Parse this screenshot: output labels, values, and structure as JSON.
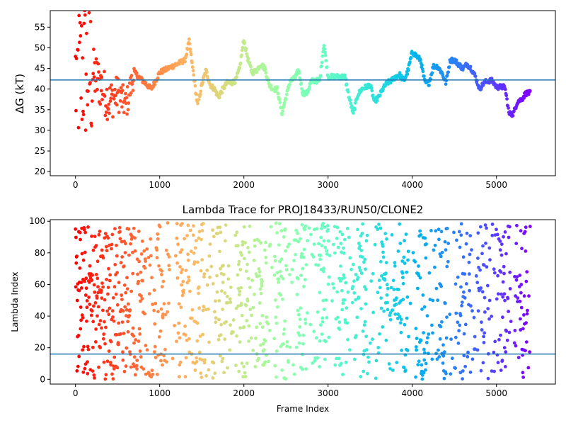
{
  "chart_data": [
    {
      "type": "scatter",
      "title": "",
      "xlabel": "",
      "ylabel": "ΔG (kT)",
      "xlim": [
        -300,
        5700
      ],
      "ylim": [
        19,
        59
      ],
      "xticks": [
        0,
        1000,
        2000,
        3000,
        4000,
        5000
      ],
      "yticks": [
        20,
        25,
        30,
        35,
        40,
        45,
        50,
        55
      ],
      "hline": 42.2,
      "hline_color": "#1f77b4",
      "colormap": "rainbow (reversed over frame index: red at 0, violet at end)",
      "x_max": 5400,
      "series": [
        {
          "x": [
            0,
            100,
            200,
            300,
            400,
            500,
            600,
            700,
            800,
            900,
            1000,
            1100,
            1200,
            1300,
            1350,
            1400,
            1450,
            1500,
            1550,
            1600,
            1650,
            1700,
            1750,
            1800,
            1850,
            1900,
            1950,
            2000,
            2050,
            2100,
            2150,
            2200,
            2250,
            2300,
            2350,
            2400,
            2450,
            2500,
            2550,
            2600,
            2650,
            2700,
            2750,
            2800,
            2850,
            2900,
            2950,
            3000,
            3050,
            3100,
            3150,
            3200,
            3250,
            3300,
            3350,
            3400,
            3450,
            3500,
            3550,
            3600,
            3650,
            3700,
            3750,
            3800,
            3850,
            3900,
            3950,
            4000,
            4050,
            4100,
            4150,
            4200,
            4250,
            4300,
            4350,
            4400,
            4450,
            4500,
            4550,
            4600,
            4650,
            4700,
            4750,
            4800,
            4850,
            4900,
            4950,
            5000,
            5050,
            5100,
            5150,
            5200,
            5250,
            5300,
            5350,
            5400
          ],
          "values": [
            42,
            45,
            44,
            41,
            37,
            39,
            36,
            44,
            42,
            40,
            44,
            45,
            46,
            47,
            51.5,
            44,
            36,
            41,
            44.5,
            41,
            40,
            38,
            40,
            41.5,
            41.5,
            42,
            45,
            52,
            47,
            44,
            44.5,
            46,
            45,
            41,
            40,
            40,
            34,
            38,
            42,
            42.5,
            44.5,
            39,
            39,
            42,
            42,
            42,
            51,
            43,
            43,
            43,
            43,
            43,
            38,
            34,
            38.5,
            40,
            40.5,
            41,
            37,
            38,
            40,
            41.5,
            42,
            43,
            43.5,
            42,
            44.5,
            49,
            48,
            47,
            41.5,
            41.5,
            45.5,
            45.5,
            44,
            41.5,
            47,
            47,
            46,
            45,
            46,
            45,
            43,
            40,
            41.5,
            42,
            42,
            40.5,
            40.5,
            40.5,
            34,
            34,
            37,
            37.5,
            39,
            39
          ]
        }
      ]
    },
    {
      "type": "scatter",
      "title": "Lambda Trace for PROJ18433/RUN50/CLONE2",
      "xlabel": "Frame Index",
      "ylabel": "Lambda Index",
      "xlim": [
        -300,
        5700
      ],
      "ylim": [
        -3,
        101
      ],
      "xticks": [
        0,
        1000,
        2000,
        3000,
        4000,
        5000
      ],
      "yticks": [
        0,
        20,
        40,
        60,
        80,
        100
      ],
      "hline": 16,
      "hline_color": "#1f77b4",
      "colormap": "rainbow (reversed over frame index: red at 0, violet at end)",
      "x_max": 5400,
      "point_count": 5400,
      "value_range": [
        0,
        99
      ]
    }
  ]
}
